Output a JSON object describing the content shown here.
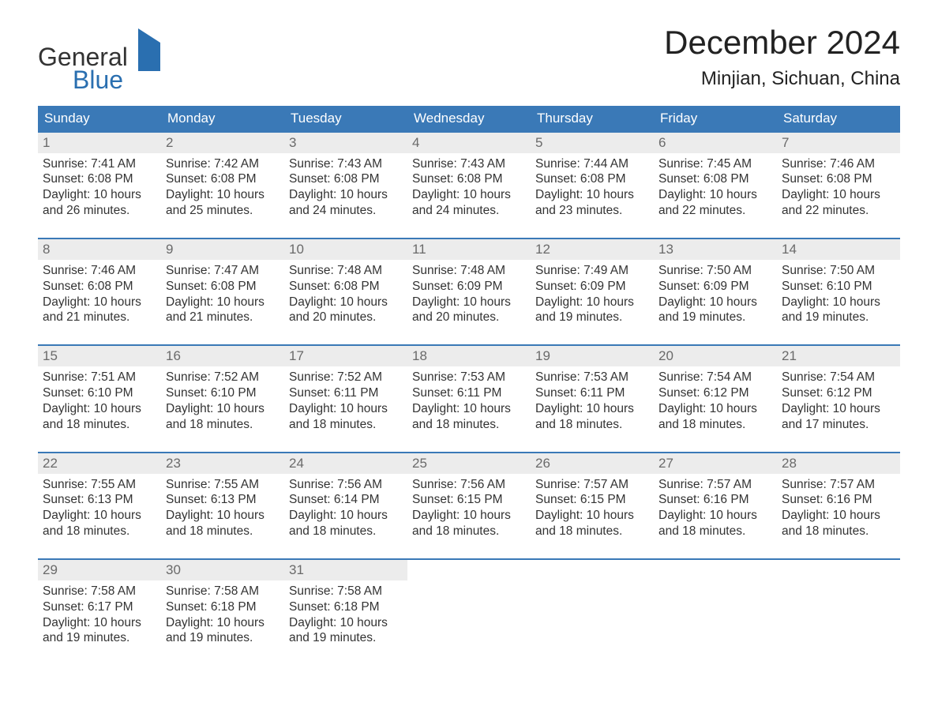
{
  "logo": {
    "line1": "General",
    "line2": "Blue"
  },
  "title": "December 2024",
  "location": "Minjian, Sichuan, China",
  "colors": {
    "header_bg": "#3a79b7",
    "header_text": "#ffffff",
    "daynum_bg": "#ececec",
    "daynum_text": "#6a6a6a",
    "row_border": "#3a79b7",
    "body_text": "#333333",
    "logo_blue": "#2a6fb0",
    "page_bg": "#ffffff"
  },
  "layout": {
    "type": "table",
    "columns_count": 7,
    "title_fontsize": 42,
    "location_fontsize": 24,
    "header_fontsize": 17,
    "daynum_fontsize": 17,
    "body_fontsize": 15.5
  },
  "weekdays": [
    "Sunday",
    "Monday",
    "Tuesday",
    "Wednesday",
    "Thursday",
    "Friday",
    "Saturday"
  ],
  "days": [
    {
      "n": "1",
      "sunrise": "Sunrise: 7:41 AM",
      "sunset": "Sunset: 6:08 PM",
      "d1": "Daylight: 10 hours",
      "d2": "and 26 minutes."
    },
    {
      "n": "2",
      "sunrise": "Sunrise: 7:42 AM",
      "sunset": "Sunset: 6:08 PM",
      "d1": "Daylight: 10 hours",
      "d2": "and 25 minutes."
    },
    {
      "n": "3",
      "sunrise": "Sunrise: 7:43 AM",
      "sunset": "Sunset: 6:08 PM",
      "d1": "Daylight: 10 hours",
      "d2": "and 24 minutes."
    },
    {
      "n": "4",
      "sunrise": "Sunrise: 7:43 AM",
      "sunset": "Sunset: 6:08 PM",
      "d1": "Daylight: 10 hours",
      "d2": "and 24 minutes."
    },
    {
      "n": "5",
      "sunrise": "Sunrise: 7:44 AM",
      "sunset": "Sunset: 6:08 PM",
      "d1": "Daylight: 10 hours",
      "d2": "and 23 minutes."
    },
    {
      "n": "6",
      "sunrise": "Sunrise: 7:45 AM",
      "sunset": "Sunset: 6:08 PM",
      "d1": "Daylight: 10 hours",
      "d2": "and 22 minutes."
    },
    {
      "n": "7",
      "sunrise": "Sunrise: 7:46 AM",
      "sunset": "Sunset: 6:08 PM",
      "d1": "Daylight: 10 hours",
      "d2": "and 22 minutes."
    },
    {
      "n": "8",
      "sunrise": "Sunrise: 7:46 AM",
      "sunset": "Sunset: 6:08 PM",
      "d1": "Daylight: 10 hours",
      "d2": "and 21 minutes."
    },
    {
      "n": "9",
      "sunrise": "Sunrise: 7:47 AM",
      "sunset": "Sunset: 6:08 PM",
      "d1": "Daylight: 10 hours",
      "d2": "and 21 minutes."
    },
    {
      "n": "10",
      "sunrise": "Sunrise: 7:48 AM",
      "sunset": "Sunset: 6:08 PM",
      "d1": "Daylight: 10 hours",
      "d2": "and 20 minutes."
    },
    {
      "n": "11",
      "sunrise": "Sunrise: 7:48 AM",
      "sunset": "Sunset: 6:09 PM",
      "d1": "Daylight: 10 hours",
      "d2": "and 20 minutes."
    },
    {
      "n": "12",
      "sunrise": "Sunrise: 7:49 AM",
      "sunset": "Sunset: 6:09 PM",
      "d1": "Daylight: 10 hours",
      "d2": "and 19 minutes."
    },
    {
      "n": "13",
      "sunrise": "Sunrise: 7:50 AM",
      "sunset": "Sunset: 6:09 PM",
      "d1": "Daylight: 10 hours",
      "d2": "and 19 minutes."
    },
    {
      "n": "14",
      "sunrise": "Sunrise: 7:50 AM",
      "sunset": "Sunset: 6:10 PM",
      "d1": "Daylight: 10 hours",
      "d2": "and 19 minutes."
    },
    {
      "n": "15",
      "sunrise": "Sunrise: 7:51 AM",
      "sunset": "Sunset: 6:10 PM",
      "d1": "Daylight: 10 hours",
      "d2": "and 18 minutes."
    },
    {
      "n": "16",
      "sunrise": "Sunrise: 7:52 AM",
      "sunset": "Sunset: 6:10 PM",
      "d1": "Daylight: 10 hours",
      "d2": "and 18 minutes."
    },
    {
      "n": "17",
      "sunrise": "Sunrise: 7:52 AM",
      "sunset": "Sunset: 6:11 PM",
      "d1": "Daylight: 10 hours",
      "d2": "and 18 minutes."
    },
    {
      "n": "18",
      "sunrise": "Sunrise: 7:53 AM",
      "sunset": "Sunset: 6:11 PM",
      "d1": "Daylight: 10 hours",
      "d2": "and 18 minutes."
    },
    {
      "n": "19",
      "sunrise": "Sunrise: 7:53 AM",
      "sunset": "Sunset: 6:11 PM",
      "d1": "Daylight: 10 hours",
      "d2": "and 18 minutes."
    },
    {
      "n": "20",
      "sunrise": "Sunrise: 7:54 AM",
      "sunset": "Sunset: 6:12 PM",
      "d1": "Daylight: 10 hours",
      "d2": "and 18 minutes."
    },
    {
      "n": "21",
      "sunrise": "Sunrise: 7:54 AM",
      "sunset": "Sunset: 6:12 PM",
      "d1": "Daylight: 10 hours",
      "d2": "and 17 minutes."
    },
    {
      "n": "22",
      "sunrise": "Sunrise: 7:55 AM",
      "sunset": "Sunset: 6:13 PM",
      "d1": "Daylight: 10 hours",
      "d2": "and 18 minutes."
    },
    {
      "n": "23",
      "sunrise": "Sunrise: 7:55 AM",
      "sunset": "Sunset: 6:13 PM",
      "d1": "Daylight: 10 hours",
      "d2": "and 18 minutes."
    },
    {
      "n": "24",
      "sunrise": "Sunrise: 7:56 AM",
      "sunset": "Sunset: 6:14 PM",
      "d1": "Daylight: 10 hours",
      "d2": "and 18 minutes."
    },
    {
      "n": "25",
      "sunrise": "Sunrise: 7:56 AM",
      "sunset": "Sunset: 6:15 PM",
      "d1": "Daylight: 10 hours",
      "d2": "and 18 minutes."
    },
    {
      "n": "26",
      "sunrise": "Sunrise: 7:57 AM",
      "sunset": "Sunset: 6:15 PM",
      "d1": "Daylight: 10 hours",
      "d2": "and 18 minutes."
    },
    {
      "n": "27",
      "sunrise": "Sunrise: 7:57 AM",
      "sunset": "Sunset: 6:16 PM",
      "d1": "Daylight: 10 hours",
      "d2": "and 18 minutes."
    },
    {
      "n": "28",
      "sunrise": "Sunrise: 7:57 AM",
      "sunset": "Sunset: 6:16 PM",
      "d1": "Daylight: 10 hours",
      "d2": "and 18 minutes."
    },
    {
      "n": "29",
      "sunrise": "Sunrise: 7:58 AM",
      "sunset": "Sunset: 6:17 PM",
      "d1": "Daylight: 10 hours",
      "d2": "and 19 minutes."
    },
    {
      "n": "30",
      "sunrise": "Sunrise: 7:58 AM",
      "sunset": "Sunset: 6:18 PM",
      "d1": "Daylight: 10 hours",
      "d2": "and 19 minutes."
    },
    {
      "n": "31",
      "sunrise": "Sunrise: 7:58 AM",
      "sunset": "Sunset: 6:18 PM",
      "d1": "Daylight: 10 hours",
      "d2": "and 19 minutes."
    }
  ]
}
